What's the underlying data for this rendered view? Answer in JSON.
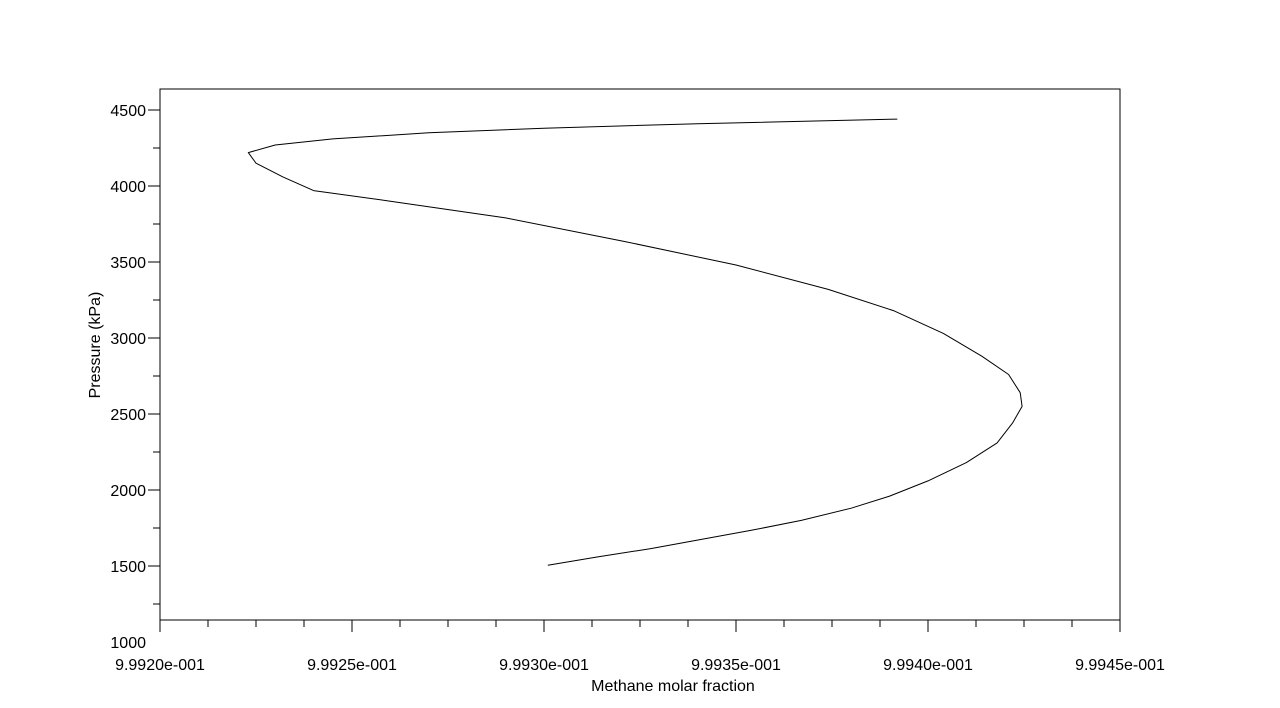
{
  "chart_data": {
    "type": "line",
    "title": "",
    "xlabel": "Methane molar fraction",
    "ylabel": "Pressure (kPa)",
    "xlim": [
      0.9992,
      0.99945
    ],
    "ylim": [
      1000,
      4500
    ],
    "grid": false,
    "legend": "none",
    "x_ticks": [
      {
        "value": 0.9992,
        "label": "9.9920e-001"
      },
      {
        "value": 0.99925,
        "label": "9.9925e-001"
      },
      {
        "value": 0.9993,
        "label": "9.9930e-001"
      },
      {
        "value": 0.99935,
        "label": "9.9935e-001"
      },
      {
        "value": 0.9994,
        "label": "9.9940e-001"
      },
      {
        "value": 0.99945,
        "label": "9.9945e-001"
      }
    ],
    "y_ticks": [
      {
        "value": 1000,
        "label": "1000"
      },
      {
        "value": 1500,
        "label": "1500"
      },
      {
        "value": 2000,
        "label": "2000"
      },
      {
        "value": 2500,
        "label": "2500"
      },
      {
        "value": 3000,
        "label": "3000"
      },
      {
        "value": 3500,
        "label": "3500"
      },
      {
        "value": 4000,
        "label": "4000"
      },
      {
        "value": 4500,
        "label": "4500"
      }
    ],
    "series": [
      {
        "color": "#000000",
        "points": [
          [
            0.999301,
            1505
          ],
          [
            0.999314,
            1560
          ],
          [
            0.999328,
            1615
          ],
          [
            0.999341,
            1675
          ],
          [
            0.999354,
            1735
          ],
          [
            0.999367,
            1800
          ],
          [
            0.99938,
            1880
          ],
          [
            0.99939,
            1960
          ],
          [
            0.9994,
            2060
          ],
          [
            0.99941,
            2180
          ],
          [
            0.999418,
            2310
          ],
          [
            0.999422,
            2440
          ],
          [
            0.9994245,
            2550
          ],
          [
            0.999424,
            2640
          ],
          [
            0.999421,
            2760
          ],
          [
            0.999414,
            2880
          ],
          [
            0.999404,
            3030
          ],
          [
            0.999391,
            3180
          ],
          [
            0.999374,
            3320
          ],
          [
            0.99935,
            3480
          ],
          [
            0.99932,
            3640
          ],
          [
            0.99929,
            3790
          ],
          [
            0.99926,
            3900
          ],
          [
            0.99924,
            3970
          ],
          [
            0.999232,
            4060
          ],
          [
            0.999225,
            4150
          ],
          [
            0.999223,
            4220
          ],
          [
            0.99923,
            4270
          ],
          [
            0.999245,
            4310
          ],
          [
            0.99927,
            4350
          ],
          [
            0.9993,
            4380
          ],
          [
            0.99934,
            4410
          ],
          [
            0.999392,
            4440
          ]
        ]
      }
    ]
  }
}
